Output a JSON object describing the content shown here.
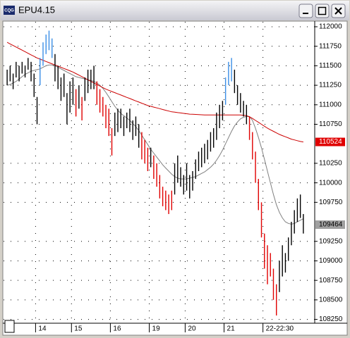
{
  "window": {
    "icon_text": "CQG"
  },
  "chart_data": {
    "type": "range-bar",
    "title": "EPU4.15",
    "high": [
      111450,
      111500,
      111400,
      111550,
      111500,
      111550,
      111500,
      111600,
      111550,
      111400,
      111100,
      111600,
      111800,
      111900,
      111950,
      111850,
      111650,
      111500,
      111350,
      111400,
      111150,
      111300,
      111350,
      111200,
      111250,
      111100,
      111350,
      111450,
      111450,
      111500,
      111300,
      111200,
      111100,
      111000,
      110950,
      110700,
      110900,
      110950,
      110950,
      110850,
      110900,
      110950,
      110800,
      110850,
      110750,
      110650,
      110550,
      110450,
      110450,
      110350,
      110250,
      110100,
      109950,
      109900,
      109850,
      109900,
      110250,
      110350,
      110200,
      110100,
      110250,
      110100,
      110150,
      110300,
      110400,
      110450,
      110500,
      110550,
      110650,
      110700,
      110900,
      111000,
      111050,
      111350,
      111550,
      111600,
      111450,
      111250,
      111150,
      111050,
      111000,
      110850,
      110650,
      110400,
      110050,
      109750,
      109350,
      109200,
      109100,
      108900,
      108700,
      109000,
      109200,
      109100,
      109300,
      109500,
      109650,
      109800,
      109850,
      109600
    ],
    "low": [
      111250,
      111300,
      111200,
      111350,
      111300,
      111400,
      111350,
      111450,
      111300,
      111100,
      110750,
      111250,
      111500,
      111650,
      111700,
      111600,
      111300,
      111200,
      111050,
      111100,
      110750,
      110900,
      111000,
      110850,
      110950,
      110800,
      111050,
      111150,
      111200,
      111200,
      111000,
      110900,
      110850,
      110700,
      110600,
      110350,
      110600,
      110650,
      110700,
      110600,
      110700,
      110650,
      110550,
      110600,
      110450,
      110300,
      110250,
      110150,
      110200,
      110050,
      109950,
      109800,
      109700,
      109650,
      109600,
      109650,
      109850,
      110000,
      109950,
      109850,
      109900,
      109800,
      109900,
      110050,
      110150,
      110200,
      110250,
      110300,
      110400,
      110450,
      110550,
      110700,
      110800,
      111000,
      111250,
      111300,
      111150,
      111000,
      110900,
      110850,
      110750,
      110550,
      110300,
      110000,
      109650,
      109300,
      108900,
      108700,
      108800,
      108500,
      108300,
      108600,
      108800,
      108850,
      109000,
      109200,
      109350,
      109500,
      109550,
      109350
    ],
    "bar_colors": [
      "#000000",
      "#000000",
      "#000000",
      "#000000",
      "#000000",
      "#000000",
      "#000000",
      "#000000",
      "#000000",
      "#000000",
      "#000000",
      "#3a8ee6",
      "#3a8ee6",
      "#3a8ee6",
      "#3a8ee6",
      "#3a8ee6",
      "#000000",
      "#000000",
      "#000000",
      "#000000",
      "#000000",
      "#000000",
      "#000000",
      "#e00000",
      "#000000",
      "#e00000",
      "#000000",
      "#000000",
      "#000000",
      "#000000",
      "#e00000",
      "#e00000",
      "#e00000",
      "#e00000",
      "#e00000",
      "#e00000",
      "#000000",
      "#000000",
      "#000000",
      "#000000",
      "#000000",
      "#000000",
      "#000000",
      "#000000",
      "#000000",
      "#e00000",
      "#e00000",
      "#e00000",
      "#000000",
      "#e00000",
      "#e00000",
      "#e00000",
      "#e00000",
      "#e00000",
      "#e00000",
      "#e00000",
      "#000000",
      "#000000",
      "#000000",
      "#000000",
      "#000000",
      "#000000",
      "#000000",
      "#000000",
      "#000000",
      "#000000",
      "#000000",
      "#000000",
      "#000000",
      "#000000",
      "#000000",
      "#000000",
      "#000000",
      "#3a8ee6",
      "#3a8ee6",
      "#3a8ee6",
      "#000000",
      "#000000",
      "#000000",
      "#000000",
      "#000000",
      "#e00000",
      "#e00000",
      "#e00000",
      "#e00000",
      "#e00000",
      "#e00000",
      "#e00000",
      "#e00000",
      "#e00000",
      "#e00000",
      "#000000",
      "#000000",
      "#000000",
      "#000000",
      "#000000",
      "#000000",
      "#000000",
      "#000000",
      "#000000"
    ],
    "ma_slow": {
      "color": "#cc0000",
      "values": [
        111800,
        111780,
        111760,
        111740,
        111720,
        111700,
        111680,
        111660,
        111640,
        111620,
        111600,
        111585,
        111570,
        111555,
        111540,
        111525,
        111510,
        111495,
        111480,
        111465,
        111450,
        111435,
        111420,
        111400,
        111380,
        111360,
        111340,
        111320,
        111300,
        111280,
        111260,
        111240,
        111220,
        111200,
        111185,
        111170,
        111155,
        111140,
        111125,
        111110,
        111095,
        111080,
        111065,
        111050,
        111035,
        111020,
        111005,
        110990,
        110980,
        110970,
        110960,
        110950,
        110940,
        110930,
        110920,
        110910,
        110905,
        110900,
        110895,
        110890,
        110885,
        110880,
        110878,
        110876,
        110874,
        110872,
        110870,
        110870,
        110870,
        110870,
        110870,
        110870,
        110870,
        110870,
        110870,
        110870,
        110870,
        110870,
        110870,
        110865,
        110860,
        110845,
        110825,
        110800,
        110775,
        110750,
        110725,
        110700,
        110680,
        110660,
        110640,
        110620,
        110605,
        110590,
        110575,
        110560,
        110550,
        110540,
        110530,
        110524
      ]
    },
    "ma_fast": {
      "color": "#808080",
      "values": [
        111250,
        111260,
        111280,
        111300,
        111330,
        111360,
        111390,
        111410,
        111430,
        111440,
        111450,
        111460,
        111480,
        111500,
        111510,
        111510,
        111500,
        111480,
        111460,
        111440,
        111420,
        111400,
        111380,
        111360,
        111350,
        111340,
        111330,
        111320,
        111310,
        111300,
        111280,
        111250,
        111210,
        111160,
        111100,
        111040,
        110980,
        110930,
        110890,
        110860,
        110830,
        110800,
        110760,
        110720,
        110670,
        110610,
        110550,
        110490,
        110430,
        110380,
        110330,
        110280,
        110230,
        110190,
        110150,
        110110,
        110080,
        110060,
        110050,
        110050,
        110050,
        110060,
        110070,
        110080,
        110100,
        110120,
        110140,
        110170,
        110200,
        110240,
        110290,
        110350,
        110420,
        110500,
        110580,
        110660,
        110730,
        110780,
        110820,
        110840,
        110850,
        110850,
        110800,
        110700,
        110580,
        110450,
        110300,
        110150,
        110000,
        109850,
        109720,
        109620,
        109550,
        109500,
        109480,
        109470,
        109480,
        109500,
        109520,
        109540
      ]
    },
    "ylim": [
      108210,
      112072
    ],
    "yticks": [
      112000,
      111750,
      111500,
      111250,
      111000,
      110750,
      110250,
      110000,
      109750,
      109250,
      109000,
      108750,
      108500,
      108250
    ],
    "price_markers": [
      {
        "value": 110524,
        "color": "#e00000",
        "text_color": "#ffffff"
      },
      {
        "value": 109464,
        "color": "#a0a0a0",
        "text_color": "#000000"
      }
    ],
    "xticks": [
      {
        "value": 10,
        "label": "14"
      },
      {
        "value": 22,
        "label": "15"
      },
      {
        "value": 35,
        "label": "16"
      },
      {
        "value": 48,
        "label": "19"
      },
      {
        "value": 60,
        "label": "20"
      },
      {
        "value": 73,
        "label": "21"
      },
      {
        "value": 86,
        "label": "22-22:30"
      }
    ],
    "grid": true
  }
}
